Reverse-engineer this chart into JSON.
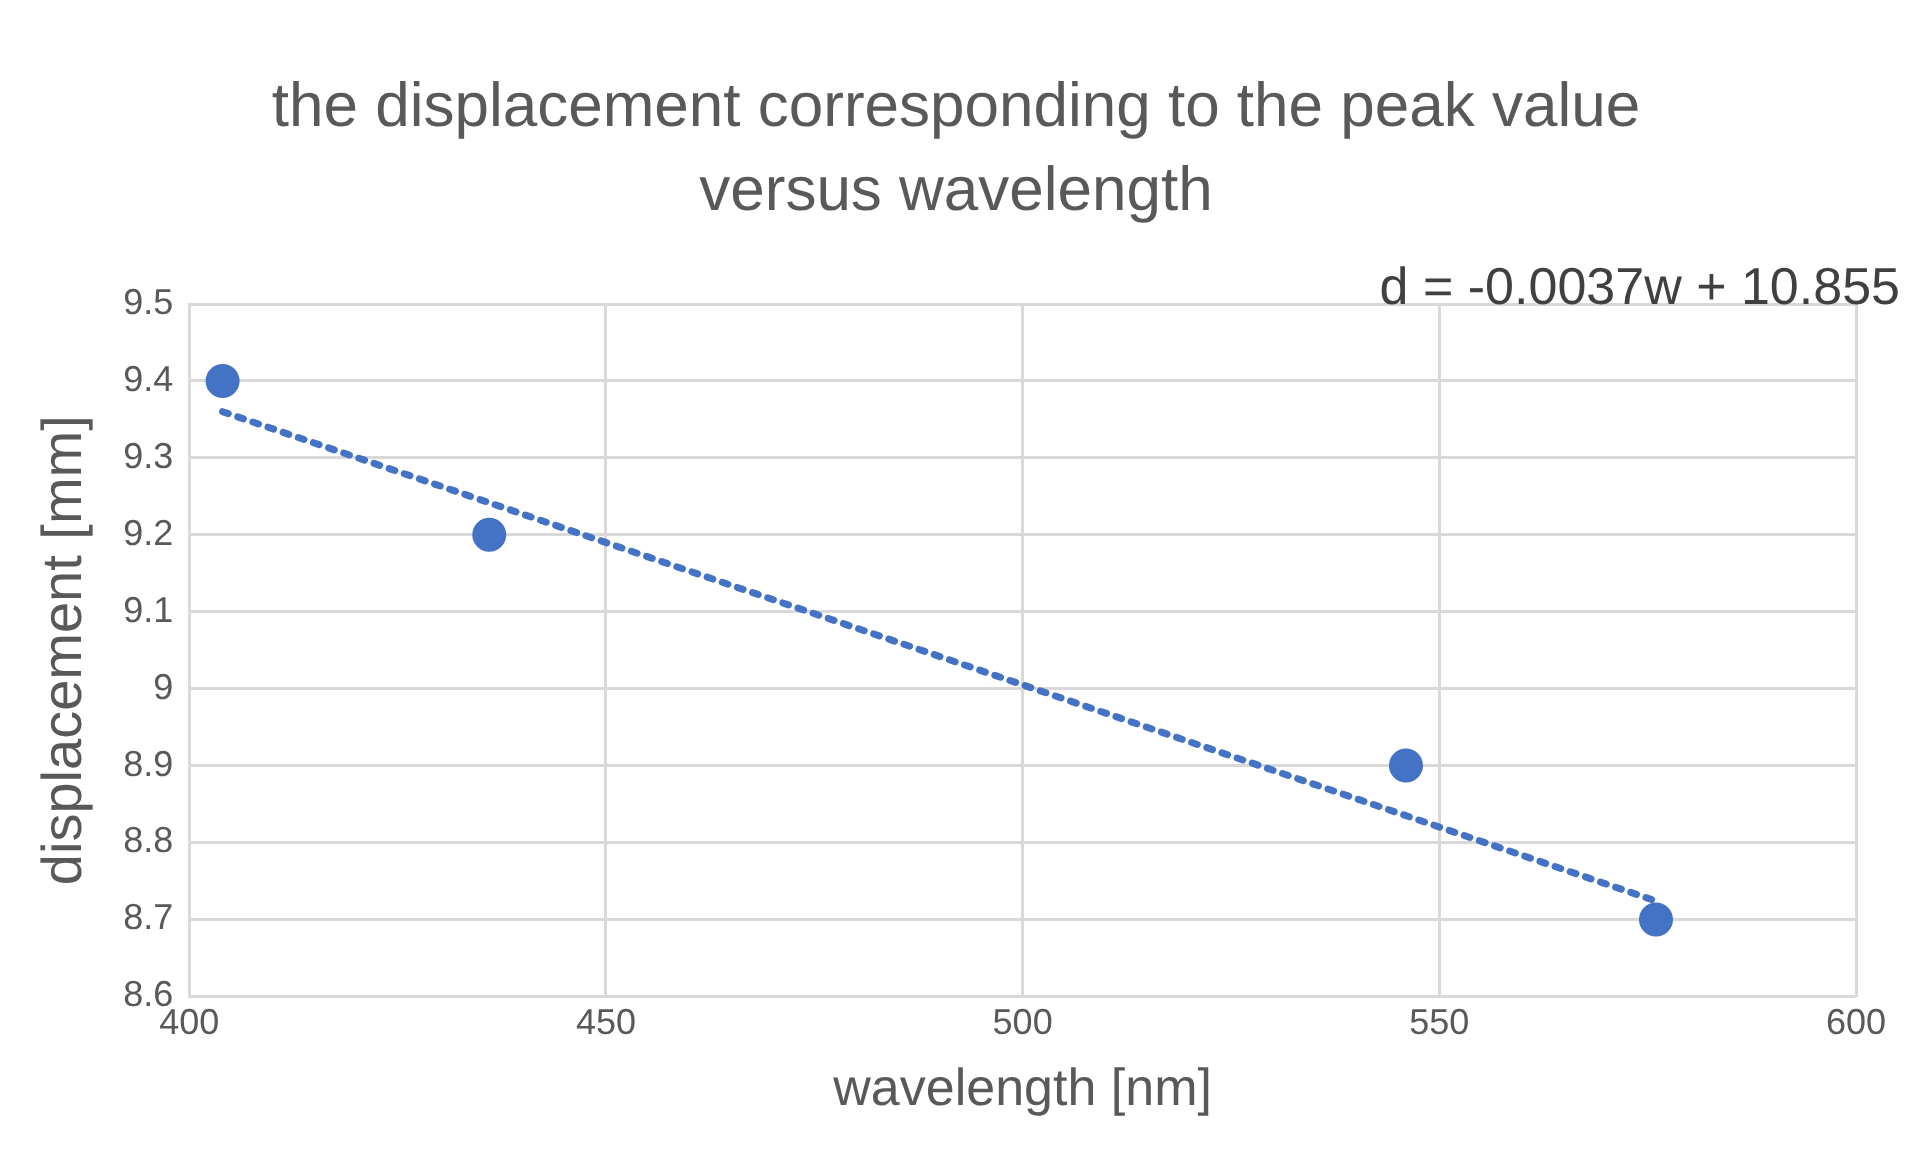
{
  "chart_data": {
    "type": "scatter",
    "title": "the displacement corresponding to the peak value versus wavelength",
    "xlabel": "wavelength [nm]",
    "ylabel": "displacement [mm]",
    "annotations": [
      "d = -0.0037w + 10.855"
    ],
    "series": [
      {
        "type": "scatter",
        "color": "#4472c4",
        "x": [
          404,
          436,
          546,
          576
        ],
        "values": [
          9.4,
          9.2,
          8.9,
          8.7
        ],
        "marker": "circle"
      },
      {
        "type": "line",
        "color": "#4472c4",
        "x": [
          404,
          576
        ],
        "values": [
          9.36,
          8.724
        ],
        "marker": "none",
        "line_style": "dotted"
      }
    ],
    "xlim": [
      400,
      600
    ],
    "xticks": [
      400,
      450,
      500,
      550,
      600
    ],
    "ylim": [
      8.6,
      9.5
    ],
    "yticks": [
      8.6,
      8.7,
      8.8,
      8.9,
      9,
      9.1,
      9.2,
      9.3,
      9.4,
      9.5
    ],
    "grid": true,
    "legend": false
  }
}
